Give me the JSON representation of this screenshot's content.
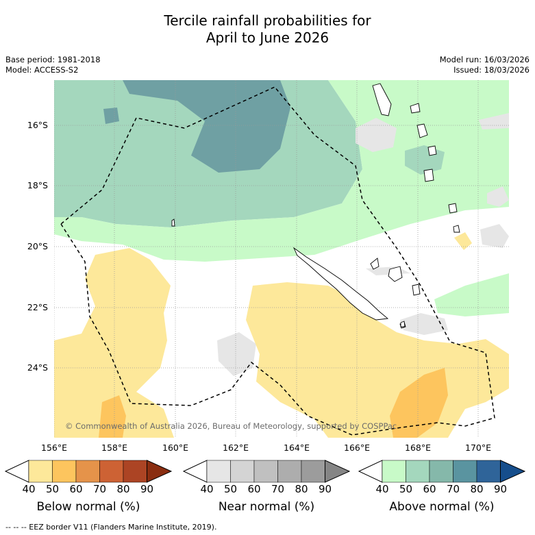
{
  "title": {
    "line1": "Tercile rainfall probabilities for",
    "line2": "April to June 2026"
  },
  "meta": {
    "base_period": "Base period: 1981-2018",
    "model": "Model: ACCESS-S2",
    "model_run": "Model run: 16/03/2026",
    "issued": "Issued: 18/03/2026"
  },
  "map": {
    "lat_labels": [
      "16°S",
      "18°S",
      "20°S",
      "22°S",
      "24°S"
    ],
    "lon_labels": [
      "156°E",
      "158°E",
      "160°E",
      "162°E",
      "164°E",
      "166°E",
      "168°E",
      "170°E"
    ],
    "copyright": "© Commonwealth of Australia 2026, Bureau of Meteorology, supported by COSPPac"
  },
  "colorbars": [
    {
      "title": "Below normal (%)",
      "ticks": [
        "40",
        "50",
        "60",
        "70",
        "80",
        "90"
      ],
      "colors": [
        "#ffffff",
        "#fde89a",
        "#fdc55e",
        "#e5934a",
        "#cd6234",
        "#ac4424",
        "#8a2d10"
      ]
    },
    {
      "title": "Near normal (%)",
      "ticks": [
        "40",
        "50",
        "60",
        "70",
        "80",
        "90"
      ],
      "colors": [
        "#ffffff",
        "#e6e6e6",
        "#d4d4d4",
        "#c0c0c0",
        "#adadad",
        "#9c9c9c",
        "#858585"
      ]
    },
    {
      "title": "Above normal (%)",
      "ticks": [
        "40",
        "50",
        "60",
        "70",
        "80",
        "90"
      ],
      "colors": [
        "#ffffff",
        "#c8fac8",
        "#a4d7bd",
        "#85b8aa",
        "#5a94a0",
        "#2f6499",
        "#164e8c"
      ]
    }
  ],
  "footer": "-- -- -- EEZ border V11 (Flanders Marine Institute, 2019)."
}
